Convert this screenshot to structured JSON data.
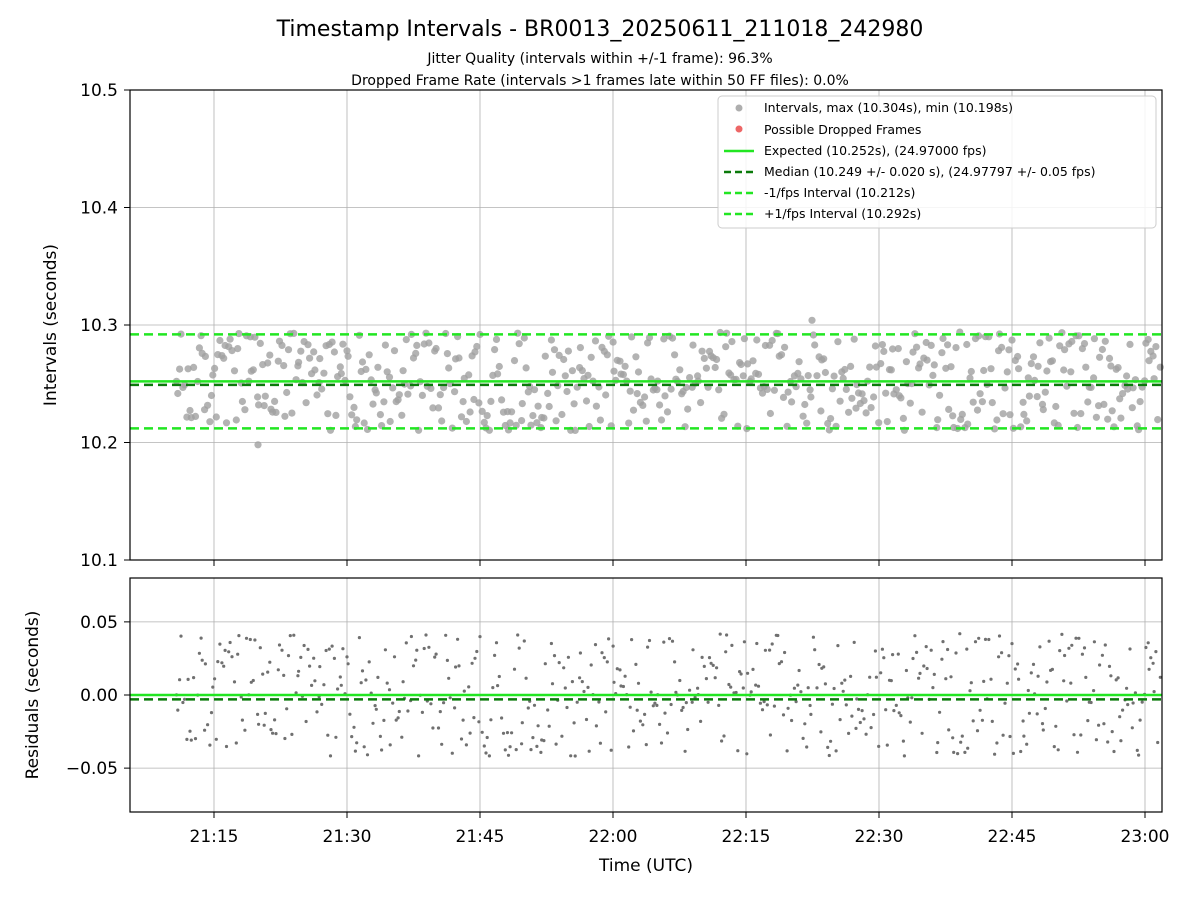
{
  "chart_data": {
    "title": "Timestamp Intervals - BR0013_20250611_211018_242980",
    "subtitle_lines": [
      "Jitter Quality (intervals within +/-1 frame): 96.3%",
      "Dropped Frame Rate (intervals >1 frames late within 50 FF files): 0.0%"
    ],
    "x_tick_labels": [
      "21:15",
      "21:30",
      "21:45",
      "22:00",
      "22:15",
      "22:30",
      "22:45",
      "23:00"
    ],
    "xlabel": "Time (UTC)",
    "panels": [
      {
        "type": "scatter",
        "ylabel": "Intervals (seconds)",
        "ylim": [
          10.1,
          10.5
        ],
        "y_tick_labels": [
          "10.1",
          "10.2",
          "10.3",
          "10.4",
          "10.5"
        ],
        "grid": true,
        "legend_position": "top-right",
        "legend": [
          "Intervals, max (10.304s), min (10.198s)",
          "Possible Dropped Frames",
          "Expected (10.252s), (24.97000 fps)",
          "Median (10.249 +/- 0.020 s), (24.97797 +/- 0.05 fps)",
          "-1/fps Interval (10.212s)",
          "+1/fps Interval (10.292s)"
        ],
        "reference_lines": {
          "expected": 10.252,
          "median": 10.249,
          "minus_one_frame": 10.212,
          "plus_one_frame": 10.292
        },
        "interval_max": 10.304,
        "interval_min": 10.198
      },
      {
        "type": "scatter",
        "ylabel": "Residuals (seconds)",
        "ylim": [
          -0.08,
          0.08
        ],
        "y_tick_labels": [
          "0.05",
          "0.00",
          "−0.05"
        ],
        "grid": true,
        "reference_lines": {
          "expected": 0.0,
          "median": -0.003
        }
      }
    ],
    "colors": {
      "interval_points": "#a0a0a0",
      "residual_points": "#707070",
      "dropped_frames": "#e84040",
      "expected_line": "#22e622",
      "median_line": "#0a7a0a",
      "fps_interval_lines": "#22e622"
    }
  }
}
